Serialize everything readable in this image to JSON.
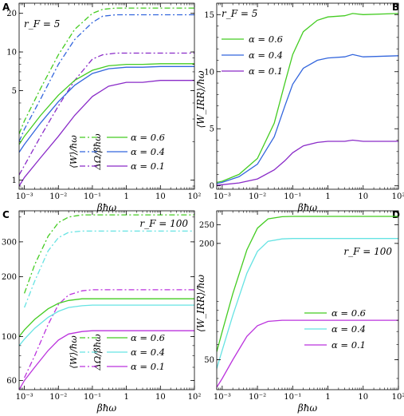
{
  "colors": {
    "green": "#44cc22",
    "blue": "#3366dd",
    "cyan": "#66e3e3",
    "purple": "#8a2bc8",
    "magenta": "#bb33dd"
  },
  "chart_data": [
    {
      "panel": "A",
      "type": "line",
      "annotation": "r_F = 5",
      "xlabel": "βħω",
      "ylabel": "",
      "xscale": "log",
      "yscale": "log",
      "xlim": [
        0.0007,
        100
      ],
      "ylim": [
        0.85,
        24
      ],
      "xticks": [
        0.001,
        0.01,
        0.1,
        1,
        10,
        100
      ],
      "xtick_labels": [
        "10⁻³",
        "10⁻²",
        "10⁻¹",
        "1",
        "10",
        "10²"
      ],
      "yticks": [
        1,
        5,
        10,
        20
      ],
      "ytick_labels": [
        "1",
        "5",
        "10",
        "20"
      ],
      "legend": {
        "placement": "bottom-center",
        "style_labels": [
          "⟨W⟩/ħω",
          "ΔΩ/βħω"
        ],
        "alpha_labels": [
          "α = 0.6",
          "α = 0.4",
          "α = 0.1"
        ]
      },
      "series": [
        {
          "color": "green",
          "style": "dashdot",
          "x": [
            0.0007,
            0.001,
            0.003,
            0.01,
            0.03,
            0.1,
            0.2,
            0.5,
            1,
            10,
            100
          ],
          "y": [
            2.3,
            2.9,
            5.2,
            9.5,
            15,
            20,
            21.5,
            22,
            22,
            22,
            22
          ]
        },
        {
          "color": "blue",
          "style": "dashdot",
          "x": [
            0.0007,
            0.001,
            0.003,
            0.01,
            0.03,
            0.1,
            0.2,
            0.5,
            1,
            10,
            100
          ],
          "y": [
            2.0,
            2.5,
            4.3,
            8.0,
            12.5,
            17,
            19,
            19.5,
            19.5,
            19.5,
            19.5
          ]
        },
        {
          "color": "purple",
          "style": "dashdot",
          "x": [
            0.0007,
            0.001,
            0.003,
            0.01,
            0.03,
            0.1,
            0.2,
            0.5,
            1,
            10,
            100
          ],
          "y": [
            1.1,
            1.3,
            2.2,
            3.8,
            6.0,
            8.8,
            9.5,
            9.8,
            9.8,
            9.8,
            9.8
          ]
        },
        {
          "color": "green",
          "style": "solid",
          "x": [
            0.0007,
            0.001,
            0.003,
            0.01,
            0.03,
            0.1,
            0.3,
            1,
            3,
            10,
            100
          ],
          "y": [
            1.9,
            2.2,
            3.2,
            4.6,
            6.0,
            7.2,
            7.8,
            8.0,
            8.0,
            8.1,
            8.1
          ]
        },
        {
          "color": "blue",
          "style": "solid",
          "x": [
            0.0007,
            0.001,
            0.003,
            0.01,
            0.03,
            0.1,
            0.3,
            1,
            3,
            10,
            100
          ],
          "y": [
            1.65,
            1.9,
            2.8,
            4.1,
            5.5,
            6.8,
            7.4,
            7.6,
            7.6,
            7.7,
            7.7
          ]
        },
        {
          "color": "purple",
          "style": "solid",
          "x": [
            0.0007,
            0.001,
            0.003,
            0.01,
            0.03,
            0.1,
            0.3,
            1,
            3,
            10,
            100
          ],
          "y": [
            0.9,
            1.05,
            1.5,
            2.2,
            3.2,
            4.5,
            5.4,
            5.8,
            5.8,
            6.0,
            6.0
          ]
        }
      ]
    },
    {
      "panel": "B",
      "type": "line",
      "annotation": "r_F = 5",
      "xlabel": "βħω",
      "ylabel": "⟨W_IRR⟩/ħω",
      "xscale": "log",
      "yscale": "linear",
      "xlim": [
        0.0007,
        100
      ],
      "ylim": [
        -0.3,
        16
      ],
      "xticks": [
        0.001,
        0.01,
        0.1,
        1,
        10,
        100
      ],
      "xtick_labels": [
        "10⁻³",
        "10⁻²",
        "10⁻¹",
        "1",
        "10",
        "10²"
      ],
      "yticks": [
        0,
        5,
        10,
        15
      ],
      "ytick_labels": [
        "0",
        "5",
        "10",
        "15"
      ],
      "legend": {
        "placement": "top-left",
        "alpha_labels": [
          "α = 0.6",
          "α = 0.4",
          "α = 0.1"
        ]
      },
      "series": [
        {
          "color": "green",
          "style": "solid",
          "x": [
            0.0007,
            0.001,
            0.003,
            0.01,
            0.03,
            0.06,
            0.1,
            0.2,
            0.5,
            1,
            3,
            5,
            10,
            100
          ],
          "y": [
            0.3,
            0.4,
            1.0,
            2.4,
            5.5,
            9,
            11.5,
            13.5,
            14.5,
            14.8,
            14.9,
            15.1,
            15.0,
            15.1
          ]
        },
        {
          "color": "blue",
          "style": "solid",
          "x": [
            0.0007,
            0.001,
            0.003,
            0.01,
            0.03,
            0.06,
            0.1,
            0.2,
            0.5,
            1,
            3,
            5,
            10,
            100
          ],
          "y": [
            0.2,
            0.3,
            0.8,
            1.9,
            4.3,
            7,
            8.9,
            10.3,
            11.0,
            11.2,
            11.3,
            11.5,
            11.3,
            11.4
          ]
        },
        {
          "color": "purple",
          "style": "solid",
          "x": [
            0.0007,
            0.001,
            0.003,
            0.01,
            0.03,
            0.06,
            0.1,
            0.2,
            0.5,
            1,
            3,
            5,
            10,
            100
          ],
          "y": [
            0.05,
            0.1,
            0.25,
            0.6,
            1.4,
            2.2,
            2.9,
            3.5,
            3.8,
            3.9,
            3.9,
            4.0,
            3.9,
            3.9
          ]
        }
      ]
    },
    {
      "panel": "C",
      "type": "line",
      "annotation": "r_F = 100",
      "xlabel": "βħω",
      "ylabel": "",
      "xscale": "log",
      "yscale": "log",
      "xlim": [
        0.0007,
        100
      ],
      "ylim": [
        54,
        430
      ],
      "xticks": [
        0.001,
        0.01,
        0.1,
        1,
        10,
        100
      ],
      "xtick_labels": [
        "10⁻³",
        "10⁻²",
        "10⁻¹",
        "1",
        "10",
        "10²"
      ],
      "yticks": [
        60,
        100,
        200,
        300
      ],
      "ytick_labels": [
        "60",
        "100",
        "200",
        "300"
      ],
      "legend": {
        "placement": "bottom-center",
        "style_labels": [
          "⟨W⟩/ħω",
          "ΔΩ/βħω"
        ],
        "alpha_labels": [
          "α = 0.6",
          "α = 0.4",
          "α = 0.1"
        ]
      },
      "series": [
        {
          "color": "green",
          "style": "dashdot",
          "x": [
            0.001,
            0.002,
            0.005,
            0.01,
            0.02,
            0.05,
            0.1,
            1,
            100
          ],
          "y": [
            165,
            230,
            320,
            375,
            400,
            410,
            410,
            410,
            410
          ]
        },
        {
          "color": "cyan",
          "style": "dashdot",
          "x": [
            0.001,
            0.002,
            0.005,
            0.01,
            0.02,
            0.05,
            0.1,
            1,
            100
          ],
          "y": [
            140,
            190,
            270,
            315,
            335,
            340,
            340,
            340,
            340
          ]
        },
        {
          "color": "magenta",
          "style": "dashdot",
          "x": [
            0.001,
            0.002,
            0.005,
            0.01,
            0.02,
            0.05,
            0.1,
            1,
            100
          ],
          "y": [
            62,
            80,
            115,
            145,
            162,
            170,
            172,
            172,
            172
          ]
        },
        {
          "color": "green",
          "style": "solid",
          "x": [
            0.0007,
            0.001,
            0.002,
            0.005,
            0.01,
            0.02,
            0.05,
            0.1,
            1,
            100
          ],
          "y": [
            100,
            108,
            122,
            138,
            147,
            152,
            155,
            155,
            155,
            155
          ]
        },
        {
          "color": "cyan",
          "style": "solid",
          "x": [
            0.0007,
            0.001,
            0.002,
            0.005,
            0.01,
            0.02,
            0.05,
            0.1,
            1,
            100
          ],
          "y": [
            90,
            97,
            110,
            125,
            134,
            140,
            143,
            144,
            144,
            144
          ]
        },
        {
          "color": "magenta",
          "style": "solid",
          "x": [
            0.0007,
            0.001,
            0.002,
            0.005,
            0.01,
            0.02,
            0.05,
            0.1,
            1,
            100
          ],
          "y": [
            54,
            60,
            70,
            85,
            96,
            103,
            106,
            107,
            107,
            107
          ]
        }
      ]
    },
    {
      "panel": "D",
      "type": "line",
      "annotation": "r_F = 100",
      "xlabel": "βħω",
      "ylabel": "⟨W_IRR⟩/ħω",
      "xscale": "log",
      "yscale": "log",
      "xlim": [
        0.0007,
        100
      ],
      "ylim": [
        35,
        295
      ],
      "xticks": [
        0.001,
        0.01,
        0.1,
        1,
        10,
        100
      ],
      "xtick_labels": [
        "10⁻³",
        "10⁻²",
        "10⁻¹",
        "1",
        "10",
        "10²"
      ],
      "yticks": [
        50,
        200,
        250
      ],
      "ytick_labels": [
        "50",
        "200",
        "250"
      ],
      "legend": {
        "placement": "center-right",
        "alpha_labels": [
          "α = 0.6",
          "α = 0.4",
          "α = 0.1"
        ]
      },
      "series": [
        {
          "color": "green",
          "style": "solid",
          "x": [
            0.0007,
            0.001,
            0.002,
            0.005,
            0.01,
            0.02,
            0.05,
            0.1,
            1,
            100
          ],
          "y": [
            55,
            70,
            110,
            185,
            240,
            268,
            275,
            276,
            276,
            276
          ]
        },
        {
          "color": "cyan",
          "style": "solid",
          "x": [
            0.0007,
            0.001,
            0.002,
            0.005,
            0.01,
            0.02,
            0.05,
            0.1,
            1,
            100
          ],
          "y": [
            45,
            56,
            85,
            140,
            182,
            205,
            211,
            212,
            212,
            212
          ]
        },
        {
          "color": "magenta",
          "style": "solid",
          "x": [
            0.0007,
            0.001,
            0.002,
            0.005,
            0.01,
            0.02,
            0.05,
            0.1,
            1,
            100
          ],
          "y": [
            36,
            40,
            50,
            66,
            75,
            79,
            80,
            80,
            80,
            80
          ]
        }
      ]
    }
  ]
}
